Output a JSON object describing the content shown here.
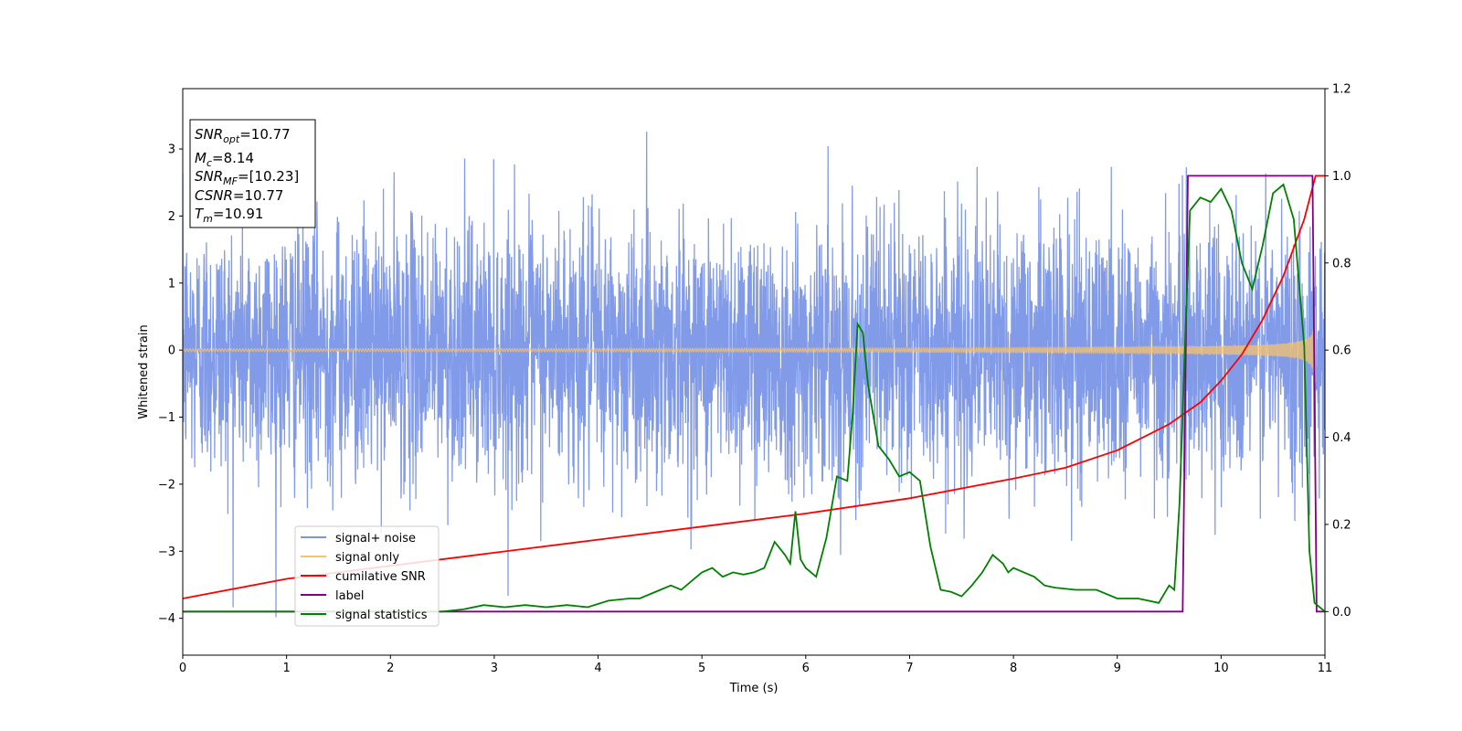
{
  "chart_data": {
    "type": "line",
    "xlabel": "Time (s)",
    "ylabel": "Whitened strain",
    "xlim": [
      0,
      11
    ],
    "ylim_left": [
      -4.55,
      3.9
    ],
    "ylim_right": [
      -0.1,
      1.2
    ],
    "x_ticks": [
      "0",
      "1",
      "2",
      "3",
      "4",
      "5",
      "6",
      "7",
      "8",
      "9",
      "10",
      "11"
    ],
    "y_ticks_left": [
      "−4",
      "−3",
      "−2",
      "−1",
      "0",
      "1",
      "2",
      "3"
    ],
    "y_ticks_right": [
      "0.0",
      "0.2",
      "0.4",
      "0.6",
      "0.8",
      "1.0",
      "1.2"
    ],
    "x_tick_values": [
      0,
      1,
      2,
      3,
      4,
      5,
      6,
      7,
      8,
      9,
      10,
      11
    ],
    "y_tick_values_left": [
      -4,
      -3,
      -2,
      -1,
      0,
      1,
      2,
      3
    ],
    "y_tick_values_right": [
      0,
      0.2,
      0.4,
      0.6,
      0.8,
      1.0,
      1.2
    ],
    "legend_position": "lower-left",
    "annotation": {
      "snr_opt": {
        "main": "SNR",
        "sub": "opt",
        "value": "=10.77"
      },
      "mc": {
        "main": "M",
        "sub": "c",
        "value": "=8.14"
      },
      "snr_mf": {
        "main": "SNR",
        "sub": "MF",
        "value": "=[10.23]"
      },
      "csnr": {
        "main": "CSNR",
        "value": "=10.77"
      },
      "tm": {
        "main": "T",
        "sub": "m",
        "value": "=10.91"
      }
    },
    "series": [
      {
        "name": "signal+ noise",
        "axis": "left",
        "color": "#7b96e8",
        "description_values": {
          "noise_std": 1.0,
          "peak_max": 3.52,
          "peak_min": -4.15
        }
      },
      {
        "name": "signal only",
        "axis": "left",
        "color": "#f6c26b",
        "chirp_end_time": 10.91,
        "amplitude_start": 0.02,
        "amplitude_end": 0.85
      },
      {
        "name": "cumilative SNR",
        "axis": "right",
        "color": "#ff0000",
        "x": [
          0,
          1,
          2,
          3,
          4,
          5,
          6,
          7,
          8,
          8.5,
          9,
          9.5,
          9.8,
          10,
          10.2,
          10.4,
          10.6,
          10.8,
          10.91,
          11
        ],
        "y": [
          0.03,
          0.075,
          0.105,
          0.135,
          0.165,
          0.195,
          0.225,
          0.26,
          0.305,
          0.33,
          0.37,
          0.43,
          0.48,
          0.53,
          0.59,
          0.67,
          0.77,
          0.9,
          1.0,
          1.0
        ]
      },
      {
        "name": "label",
        "axis": "right",
        "color": "#800080",
        "x": [
          0,
          9.63,
          9.68,
          10.88,
          10.92,
          11
        ],
        "y": [
          0,
          0,
          1,
          1,
          0,
          0
        ]
      },
      {
        "name": "signal statistics",
        "axis": "right",
        "color": "#008000",
        "x": [
          0,
          0.5,
          1,
          1.5,
          2,
          2.5,
          2.7,
          2.9,
          3.1,
          3.3,
          3.5,
          3.7,
          3.9,
          4.1,
          4.3,
          4.4,
          4.6,
          4.7,
          4.8,
          4.9,
          5.0,
          5.1,
          5.2,
          5.3,
          5.4,
          5.5,
          5.6,
          5.7,
          5.8,
          5.85,
          5.9,
          5.95,
          6.0,
          6.1,
          6.2,
          6.3,
          6.4,
          6.45,
          6.5,
          6.55,
          6.6,
          6.7,
          6.8,
          6.9,
          7.0,
          7.1,
          7.2,
          7.3,
          7.4,
          7.5,
          7.6,
          7.7,
          7.8,
          7.9,
          7.95,
          8.0,
          8.1,
          8.2,
          8.3,
          8.4,
          8.6,
          8.8,
          9.0,
          9.2,
          9.4,
          9.5,
          9.55,
          9.6,
          9.65,
          9.7,
          9.8,
          9.9,
          10.0,
          10.1,
          10.2,
          10.3,
          10.4,
          10.5,
          10.6,
          10.7,
          10.8,
          10.85,
          10.9,
          11.0
        ],
        "y": [
          0,
          0.0,
          0.0,
          0.0,
          0.0,
          0.0,
          0.005,
          0.015,
          0.01,
          0.015,
          0.01,
          0.015,
          0.01,
          0.025,
          0.03,
          0.03,
          0.05,
          0.06,
          0.05,
          0.07,
          0.09,
          0.1,
          0.08,
          0.09,
          0.085,
          0.09,
          0.1,
          0.16,
          0.13,
          0.11,
          0.23,
          0.12,
          0.1,
          0.08,
          0.17,
          0.31,
          0.3,
          0.45,
          0.66,
          0.64,
          0.52,
          0.38,
          0.35,
          0.31,
          0.32,
          0.3,
          0.15,
          0.05,
          0.045,
          0.035,
          0.06,
          0.09,
          0.13,
          0.11,
          0.09,
          0.1,
          0.09,
          0.08,
          0.06,
          0.055,
          0.05,
          0.05,
          0.03,
          0.03,
          0.02,
          0.06,
          0.05,
          0.25,
          0.6,
          0.92,
          0.95,
          0.94,
          0.97,
          0.92,
          0.8,
          0.74,
          0.84,
          0.96,
          0.98,
          0.9,
          0.61,
          0.14,
          0.02,
          0.0
        ]
      }
    ]
  }
}
